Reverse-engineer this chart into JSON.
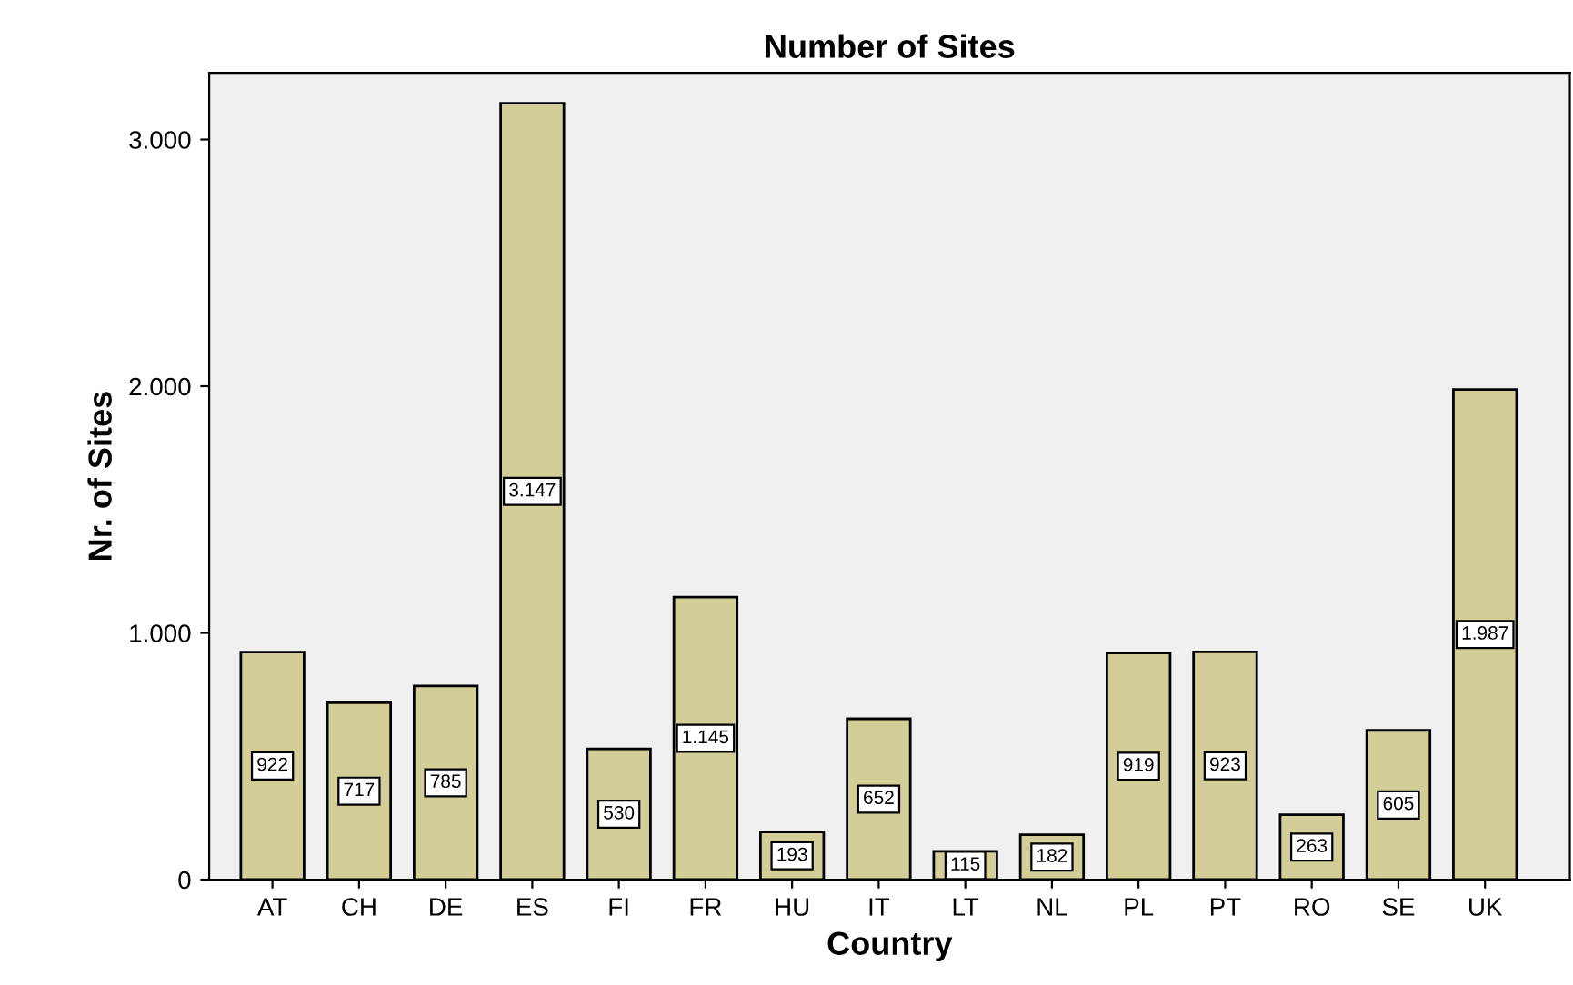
{
  "chart_data": {
    "type": "bar",
    "title": "Number of Sites",
    "xlabel": "Country",
    "ylabel": "Nr. of Sites",
    "categories": [
      "AT",
      "CH",
      "DE",
      "ES",
      "FI",
      "FR",
      "HU",
      "IT",
      "LT",
      "NL",
      "PL",
      "PT",
      "RO",
      "SE",
      "UK"
    ],
    "values": [
      922,
      717,
      785,
      3147,
      530,
      1145,
      193,
      652,
      115,
      182,
      919,
      923,
      263,
      605,
      1987
    ],
    "value_labels": [
      "922",
      "717",
      "785",
      "3.147",
      "530",
      "1.145",
      "193",
      "652",
      "115",
      "182",
      "919",
      "923",
      "263",
      "605",
      "1.987"
    ],
    "color": "#d3ce98",
    "ylim": [
      0,
      3270
    ],
    "yticks": [
      0,
      {
        "value": 1000,
        "label": "1.000"
      },
      {
        "value": 2000,
        "label": "2.000"
      },
      {
        "value": 3000,
        "label": "3.000"
      }
    ],
    "grid": false,
    "legend": false
  }
}
